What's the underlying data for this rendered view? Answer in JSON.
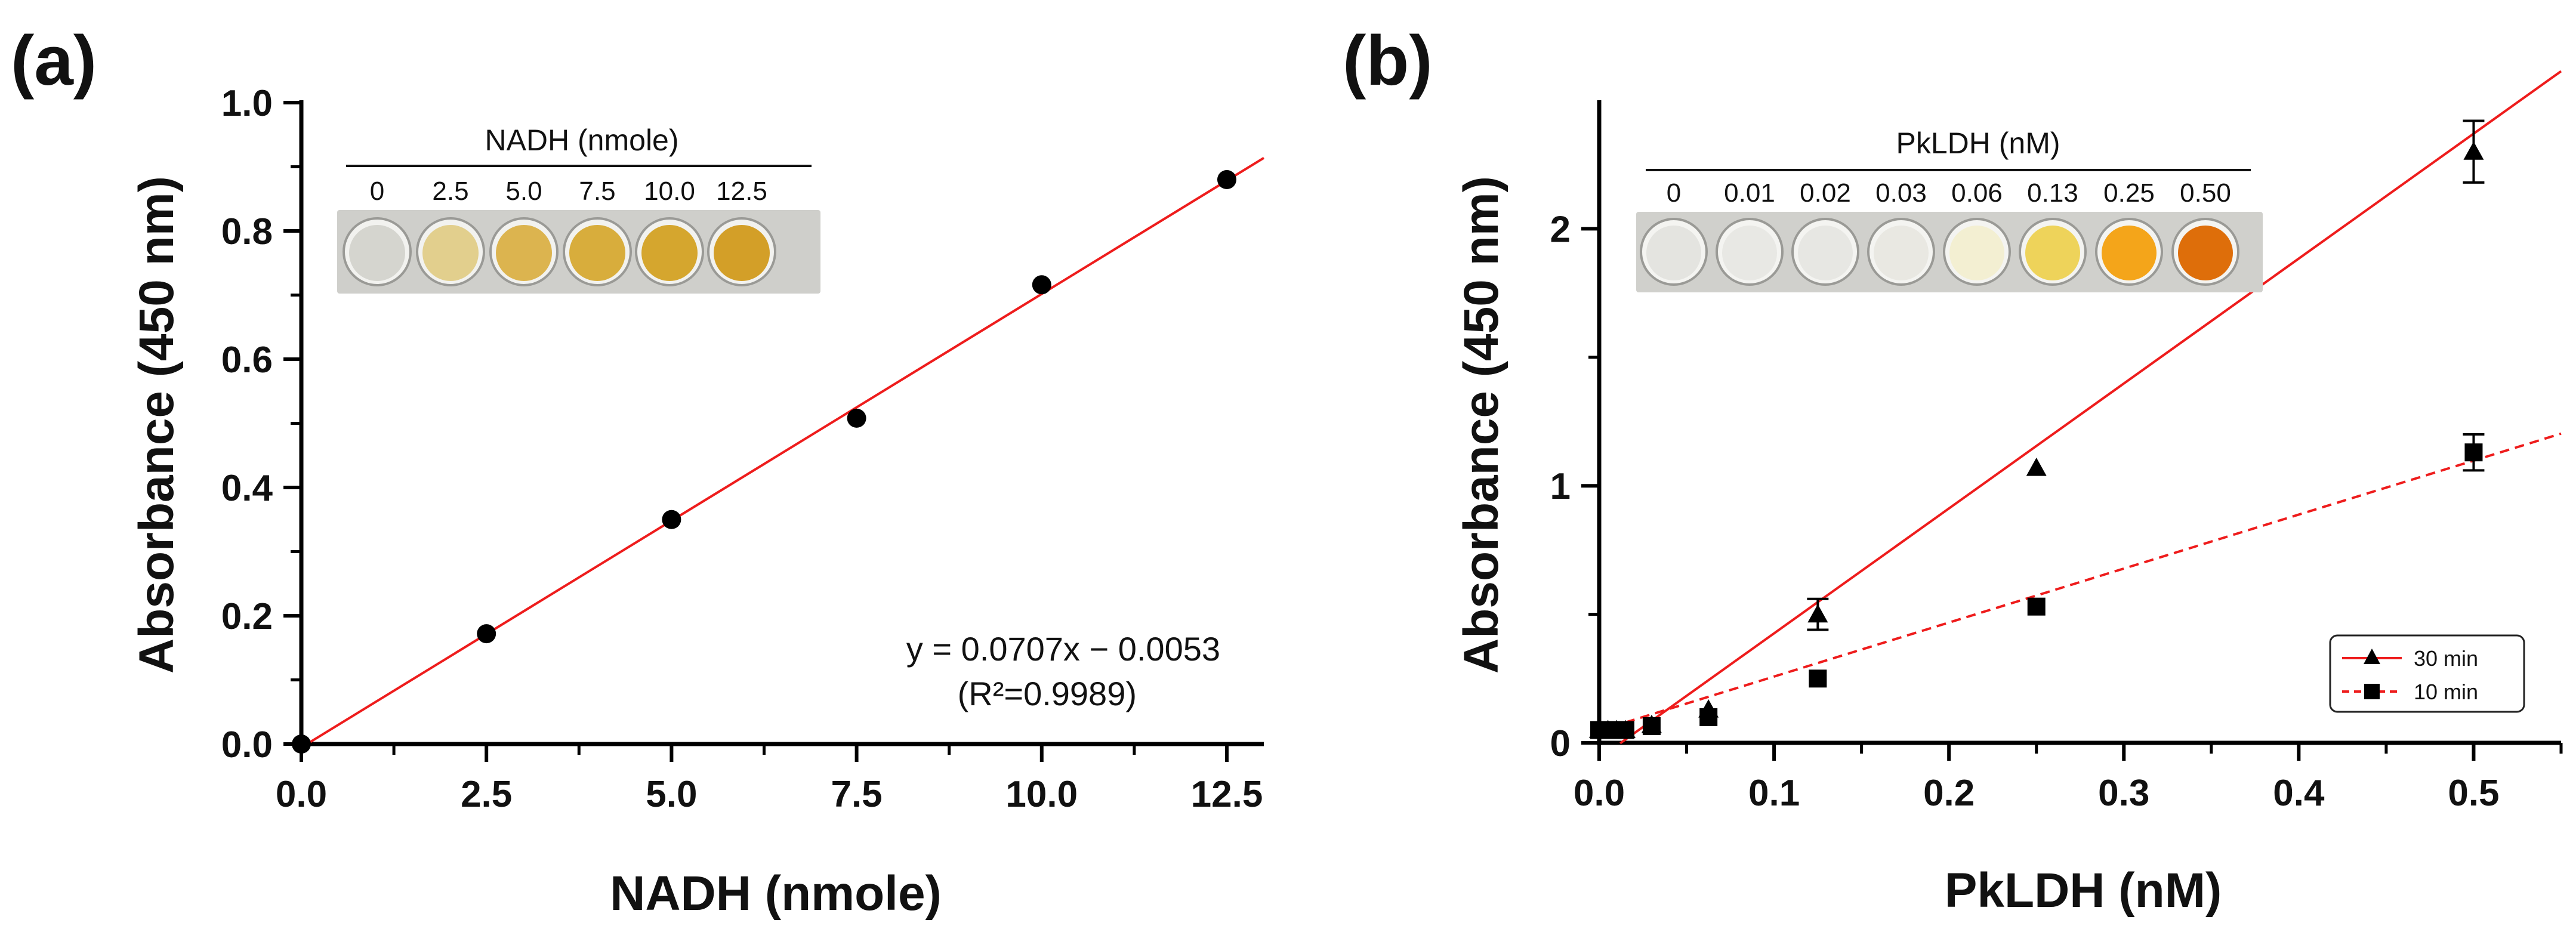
{
  "panel_a": {
    "letter": "(a)",
    "inset": {
      "title": "NADH (nmole)",
      "labels": [
        "0",
        "2.5",
        "5.0",
        "7.5",
        "10.0",
        "12.5"
      ],
      "well_colors": [
        "#d5d5cf",
        "#e2cf8d",
        "#dcb44f",
        "#d8ad3c",
        "#d5a62e",
        "#d39f28"
      ]
    },
    "equation": "y = 0.0707x − 0.0053",
    "r2": "(R²=0.9989)"
  },
  "panel_b": {
    "letter": "(b)",
    "inset": {
      "title": "PkLDH (nM)",
      "labels": [
        "0",
        "0.01",
        "0.02",
        "0.03",
        "0.06",
        "0.13",
        "0.25",
        "0.50"
      ],
      "well_colors": [
        "#e4e4e0",
        "#e8e8e4",
        "#e7e7e3",
        "#e9e8e2",
        "#f3efd2",
        "#eed35a",
        "#f4a51a",
        "#de6e0a"
      ]
    },
    "legend": [
      "30 min",
      "10 min"
    ]
  },
  "chart_data": [
    {
      "type": "scatter",
      "title": "",
      "xlabel": "NADH  (nmole)",
      "ylabel": "Absorbance (450 nm)",
      "xlim": [
        0,
        13
      ],
      "ylim": [
        0,
        1.0
      ],
      "xticks": [
        "0.0",
        "2.5",
        "5.0",
        "7.5",
        "10.0",
        "12.5"
      ],
      "yticks": [
        "0.0",
        "0.2",
        "0.4",
        "0.6",
        "0.8",
        "1.0"
      ],
      "series": [
        {
          "x": [
            0,
            2.5,
            5.0,
            7.5,
            10.0,
            12.5
          ],
          "y": [
            0.0,
            0.172,
            0.35,
            0.508,
            0.716,
            0.88
          ],
          "marker": "circle",
          "color": "#000000"
        }
      ],
      "fit": {
        "slope": 0.0707,
        "intercept": -0.0053,
        "x_range": [
          0,
          13
        ],
        "color": "#ee1c1c",
        "style": "solid"
      },
      "grid": false
    },
    {
      "type": "scatter",
      "title": "",
      "xlabel": "PkLDH (nM)",
      "ylabel": "Absorbance (450 nm)",
      "xlim": [
        0,
        0.55
      ],
      "ylim": [
        0,
        2.5
      ],
      "xticks": [
        "0.0",
        "0.1",
        "0.2",
        "0.3",
        "0.4",
        "0.5"
      ],
      "yticks": [
        "0",
        "1",
        "2"
      ],
      "legend_position": "bottom-right",
      "series": [
        {
          "name": "30 min",
          "marker": "triangle",
          "color": "#000000",
          "line": "solid",
          "line_color": "#ee1c1c",
          "x": [
            0,
            0.005,
            0.01,
            0.015,
            0.03,
            0.0625,
            0.125,
            0.25,
            0.5
          ],
          "y": [
            0.05,
            0.05,
            0.05,
            0.05,
            0.07,
            0.13,
            0.5,
            1.07,
            2.3
          ],
          "err": [
            0,
            0,
            0,
            0,
            0,
            0,
            0.06,
            0,
            0.12
          ],
          "fit": {
            "slope": 4.86,
            "intercept": -0.06,
            "x_range": [
              0.012,
              0.55
            ]
          }
        },
        {
          "name": "10 min",
          "marker": "square",
          "color": "#000000",
          "line": "dashed",
          "line_color": "#ee1c1c",
          "x": [
            0,
            0.005,
            0.01,
            0.015,
            0.03,
            0.0625,
            0.125,
            0.25,
            0.5
          ],
          "y": [
            0.05,
            0.05,
            0.05,
            0.05,
            0.065,
            0.1,
            0.25,
            0.53,
            1.13
          ],
          "err": [
            0,
            0,
            0,
            0,
            0,
            0,
            0,
            0,
            0.07
          ],
          "fit": {
            "slope": 2.1,
            "intercept": 0.048,
            "x_range": [
              0.015,
              0.55
            ]
          }
        }
      ],
      "grid": false
    }
  ]
}
